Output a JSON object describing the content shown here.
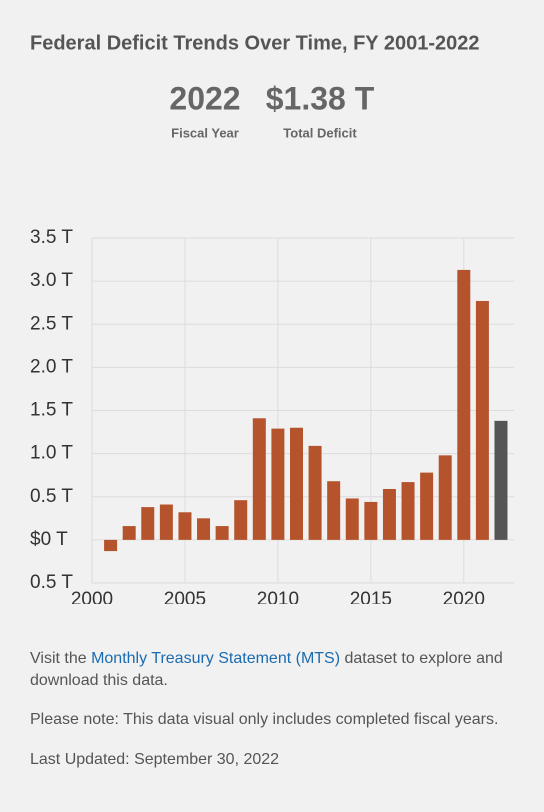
{
  "chart_data": {
    "type": "bar",
    "title": "Federal Deficit Trends Over Time, FY 2001-2022",
    "header": {
      "year": "2022",
      "year_label": "Fiscal Year",
      "value": "$1.38 T",
      "value_label": "Total Deficit"
    },
    "x": [
      2001,
      2002,
      2003,
      2004,
      2005,
      2006,
      2007,
      2008,
      2009,
      2010,
      2011,
      2012,
      2013,
      2014,
      2015,
      2016,
      2017,
      2018,
      2019,
      2020,
      2021,
      2022
    ],
    "values": [
      -0.13,
      0.16,
      0.38,
      0.41,
      0.32,
      0.25,
      0.16,
      0.46,
      1.41,
      1.29,
      1.3,
      1.09,
      0.68,
      0.48,
      0.44,
      0.59,
      0.67,
      0.78,
      0.98,
      3.13,
      2.77,
      1.38
    ],
    "colors": [
      "#b5532c",
      "#b5532c",
      "#b5532c",
      "#b5532c",
      "#b5532c",
      "#b5532c",
      "#b5532c",
      "#b5532c",
      "#b5532c",
      "#b5532c",
      "#b5532c",
      "#b5532c",
      "#b5532c",
      "#b5532c",
      "#b5532c",
      "#b5532c",
      "#b5532c",
      "#b5532c",
      "#b5532c",
      "#b5532c",
      "#b5532c",
      "#555555"
    ],
    "ylim": [
      -0.5,
      3.5
    ],
    "yticks": [
      {
        "value": -0.5,
        "label": "0.5 T"
      },
      {
        "value": 0,
        "label": "$0 T"
      },
      {
        "value": 0.5,
        "label": "0.5 T"
      },
      {
        "value": 1,
        "label": "1.0 T"
      },
      {
        "value": 1.5,
        "label": "1.5 T"
      },
      {
        "value": 2,
        "label": "2.0 T"
      },
      {
        "value": 2.5,
        "label": "2.5 T"
      },
      {
        "value": 3,
        "label": "3.0 T"
      },
      {
        "value": 3.5,
        "label": "3.5 T"
      }
    ],
    "xlim": [
      2000,
      2022.7
    ],
    "xticks": [
      2000,
      2005,
      2010,
      2015,
      2020
    ],
    "grid": true
  },
  "footer": {
    "visit": "Visit the ",
    "link": "Monthly Treasury Statement (MTS)",
    "visit_end": " dataset to explore and download this data.",
    "note": "Please note: This data visual only includes completed fiscal years.",
    "updated": "Last Updated: September 30, 2022"
  }
}
